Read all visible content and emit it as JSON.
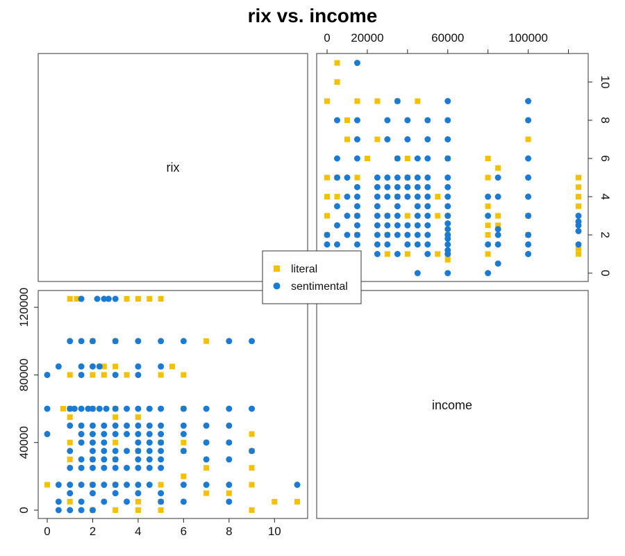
{
  "chart_data": {
    "type": "scatter",
    "title": "rix vs. income",
    "variables": [
      "rix",
      "income"
    ],
    "rix_ticks": [
      0,
      2,
      4,
      6,
      8,
      10
    ],
    "income_ticks": [
      0,
      20000,
      60000,
      100000
    ],
    "income_ticks_left": [
      0,
      40000,
      80000,
      120000
    ],
    "rix_lim": [
      0,
      11
    ],
    "income_lim": [
      0,
      125000
    ],
    "grid": false,
    "legend_position": "center",
    "series": [
      {
        "name": "literal",
        "color": "#F5C000",
        "marker": "square",
        "points": [
          [
            2,
            0
          ],
          [
            3,
            0
          ],
          [
            4,
            0
          ],
          [
            5,
            0
          ],
          [
            9,
            0
          ],
          [
            11,
            5000
          ],
          [
            10,
            5000
          ],
          [
            1,
            5000
          ],
          [
            4,
            5000
          ],
          [
            5,
            5000
          ],
          [
            2,
            15000
          ],
          [
            3,
            15000
          ],
          [
            7,
            10000
          ],
          [
            8,
            10000
          ],
          [
            9,
            15000
          ],
          [
            0,
            15000
          ],
          [
            5,
            15000
          ],
          [
            6,
            20000
          ],
          [
            9,
            25000
          ],
          [
            7,
            25000
          ],
          [
            1,
            30000
          ],
          [
            2,
            30000
          ],
          [
            3,
            30000
          ],
          [
            4,
            35000
          ],
          [
            6,
            35000
          ],
          [
            9,
            35000
          ],
          [
            1,
            40000
          ],
          [
            3,
            40000
          ],
          [
            5,
            40000
          ],
          [
            6,
            40000
          ],
          [
            9,
            45000
          ],
          [
            1,
            55000
          ],
          [
            3,
            55000
          ],
          [
            4,
            55000
          ],
          [
            0.7,
            60000
          ],
          [
            1,
            60000
          ],
          [
            2,
            60000
          ],
          [
            3,
            60000
          ],
          [
            6,
            60000
          ],
          [
            2.5,
            80000
          ],
          [
            3.5,
            80000
          ],
          [
            5,
            80000
          ],
          [
            6,
            80000
          ],
          [
            1,
            80000
          ],
          [
            2,
            80000
          ],
          [
            2.5,
            85000
          ],
          [
            3,
            85000
          ],
          [
            5.5,
            85000
          ],
          [
            2,
            100000
          ],
          [
            3,
            100000
          ],
          [
            7,
            100000
          ],
          [
            1,
            125000
          ],
          [
            1.3,
            125000
          ],
          [
            3.5,
            125000
          ],
          [
            4,
            125000
          ],
          [
            4.5,
            125000
          ],
          [
            5,
            125000
          ]
        ]
      },
      {
        "name": "sentimental",
        "color": "#1A7AD4",
        "marker": "circle",
        "points": [
          [
            0.5,
            0
          ],
          [
            1,
            0
          ],
          [
            1.5,
            0
          ],
          [
            2,
            0
          ],
          [
            0.5,
            5000
          ],
          [
            1.5,
            5000
          ],
          [
            2.5,
            5000
          ],
          [
            3.5,
            5000
          ],
          [
            5,
            5000
          ],
          [
            6,
            5000
          ],
          [
            8,
            5000
          ],
          [
            0.5,
            15000
          ],
          [
            1,
            15000
          ],
          [
            1.5,
            15000
          ],
          [
            2,
            15000
          ],
          [
            2.5,
            15000
          ],
          [
            3,
            15000
          ],
          [
            3.5,
            15000
          ],
          [
            4,
            15000
          ],
          [
            4.5,
            15000
          ],
          [
            6,
            15000
          ],
          [
            7,
            15000
          ],
          [
            8,
            15000
          ],
          [
            11,
            15000
          ],
          [
            1,
            10000
          ],
          [
            2,
            10000
          ],
          [
            3,
            10000
          ],
          [
            4,
            10000
          ],
          [
            5,
            10000
          ],
          [
            1,
            25000
          ],
          [
            1.5,
            25000
          ],
          [
            2,
            25000
          ],
          [
            2.5,
            25000
          ],
          [
            3,
            25000
          ],
          [
            3.5,
            25000
          ],
          [
            4,
            25000
          ],
          [
            4.5,
            25000
          ],
          [
            5,
            25000
          ],
          [
            1.5,
            30000
          ],
          [
            2,
            30000
          ],
          [
            2.5,
            30000
          ],
          [
            3,
            30000
          ],
          [
            4,
            30000
          ],
          [
            4.5,
            30000
          ],
          [
            5,
            30000
          ],
          [
            7,
            30000
          ],
          [
            8,
            30000
          ],
          [
            1,
            35000
          ],
          [
            2,
            35000
          ],
          [
            2.5,
            35000
          ],
          [
            3,
            35000
          ],
          [
            3.5,
            35000
          ],
          [
            4,
            35000
          ],
          [
            4.5,
            35000
          ],
          [
            5,
            35000
          ],
          [
            6,
            35000
          ],
          [
            9,
            35000
          ],
          [
            1.5,
            40000
          ],
          [
            2,
            40000
          ],
          [
            2.5,
            40000
          ],
          [
            4,
            40000
          ],
          [
            4.5,
            40000
          ],
          [
            5,
            40000
          ],
          [
            7,
            40000
          ],
          [
            8,
            40000
          ],
          [
            1.5,
            45000
          ],
          [
            2,
            45000
          ],
          [
            2.5,
            45000
          ],
          [
            3,
            45000
          ],
          [
            3.5,
            45000
          ],
          [
            4,
            45000
          ],
          [
            4.5,
            45000
          ],
          [
            5,
            45000
          ],
          [
            6,
            45000
          ],
          [
            0,
            45000
          ],
          [
            1,
            50000
          ],
          [
            1.5,
            50000
          ],
          [
            2,
            50000
          ],
          [
            2.5,
            50000
          ],
          [
            3,
            50000
          ],
          [
            3.5,
            50000
          ],
          [
            4,
            50000
          ],
          [
            4.5,
            50000
          ],
          [
            5,
            50000
          ],
          [
            6,
            50000
          ],
          [
            7,
            50000
          ],
          [
            8,
            50000
          ],
          [
            0,
            60000
          ],
          [
            1,
            60000
          ],
          [
            1.2,
            60000
          ],
          [
            1.5,
            60000
          ],
          [
            1.8,
            60000
          ],
          [
            2,
            60000
          ],
          [
            2.3,
            60000
          ],
          [
            2.6,
            60000
          ],
          [
            3,
            60000
          ],
          [
            3.5,
            60000
          ],
          [
            4,
            60000
          ],
          [
            4.5,
            60000
          ],
          [
            5,
            60000
          ],
          [
            6,
            60000
          ],
          [
            7,
            60000
          ],
          [
            8,
            60000
          ],
          [
            9,
            60000
          ],
          [
            0,
            80000
          ],
          [
            1.5,
            80000
          ],
          [
            3,
            80000
          ],
          [
            4,
            80000
          ],
          [
            0.5,
            85000
          ],
          [
            1.5,
            85000
          ],
          [
            2,
            85000
          ],
          [
            2.3,
            85000
          ],
          [
            4,
            85000
          ],
          [
            5,
            85000
          ],
          [
            1,
            100000
          ],
          [
            1.5,
            100000
          ],
          [
            2,
            100000
          ],
          [
            3,
            100000
          ],
          [
            4,
            100000
          ],
          [
            5,
            100000
          ],
          [
            6,
            100000
          ],
          [
            8,
            100000
          ],
          [
            9,
            100000
          ],
          [
            1.5,
            125000
          ],
          [
            2.2,
            125000
          ],
          [
            2.5,
            125000
          ],
          [
            2.7,
            125000
          ],
          [
            3,
            125000
          ]
        ]
      }
    ]
  }
}
